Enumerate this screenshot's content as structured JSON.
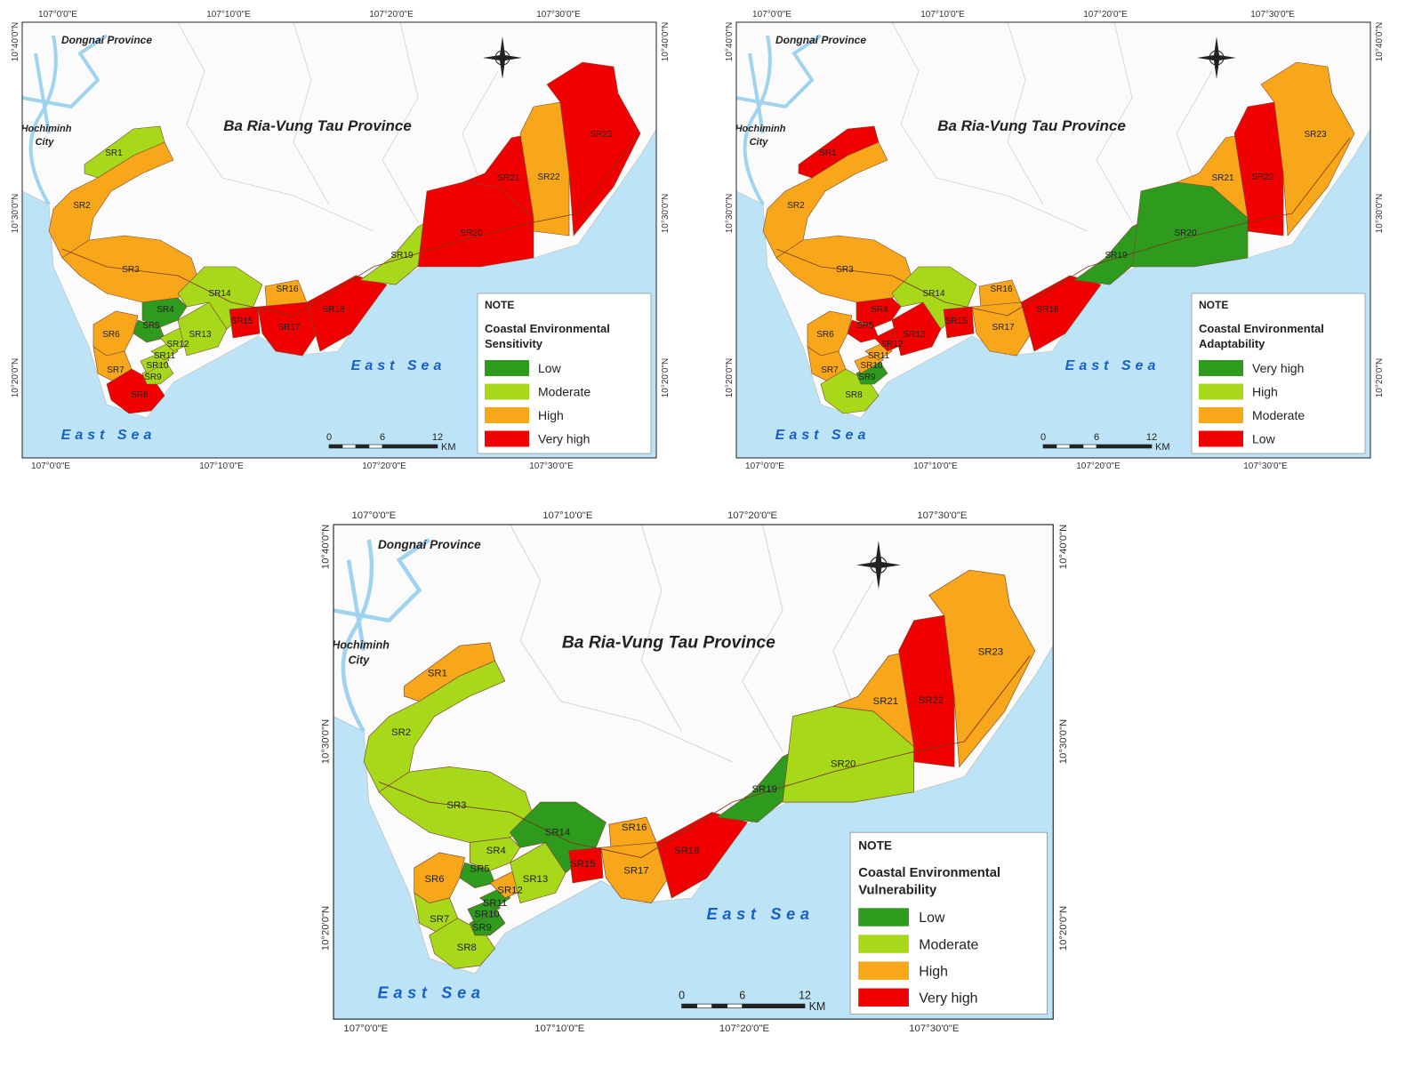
{
  "maps": [
    {
      "coordinates": {
        "top": [
          "107°0'0\"E",
          "107°10'0\"E",
          "107°20'0\"E",
          "107°30'0\"E"
        ],
        "bottom": [
          "107°0'0\"E",
          "107°10'0\"E",
          "107°20'0\"E",
          "107°30'0\"E"
        ],
        "left": [
          "10°40'0\"N",
          "10°30'0\"N",
          "10°20'0\"N"
        ],
        "right": [
          "10°40'0\"N",
          "10°30'0\"N",
          "10°20'0\"N"
        ]
      },
      "places": {
        "neighbor": "Dongnai Province",
        "city": [
          "Hochiminh",
          "City"
        ],
        "province": "Ba Ria-Vung Tau Province",
        "sea": [
          "East Sea",
          "East Sea"
        ]
      },
      "regions": [
        {
          "label": "SR1",
          "color": "#a8d81a"
        },
        {
          "label": "SR2",
          "color": "#f8a61a"
        },
        {
          "label": "SR3",
          "color": "#f8a61a"
        },
        {
          "label": "SR4",
          "color": "#2e9a1e"
        },
        {
          "label": "SR5",
          "color": "#2e9a1e"
        },
        {
          "label": "SR6",
          "color": "#f8a61a"
        },
        {
          "label": "SR7",
          "color": "#f8a61a"
        },
        {
          "label": "SR8",
          "color": "#f00000"
        },
        {
          "label": "SR9",
          "color": "#a8d81a"
        },
        {
          "label": "SR10",
          "color": "#a8d81a"
        },
        {
          "label": "SR11",
          "color": "#a8d81a"
        },
        {
          "label": "SR12",
          "color": "#a8d81a"
        },
        {
          "label": "SR13",
          "color": "#a8d81a"
        },
        {
          "label": "SR14",
          "color": "#a8d81a"
        },
        {
          "label": "SR15",
          "color": "#f00000"
        },
        {
          "label": "SR16",
          "color": "#f8a61a"
        },
        {
          "label": "SR17",
          "color": "#f00000"
        },
        {
          "label": "SR18",
          "color": "#f00000"
        },
        {
          "label": "SR19",
          "color": "#a8d81a"
        },
        {
          "label": "SR20",
          "color": "#f00000"
        },
        {
          "label": "SR21",
          "color": "#f00000"
        },
        {
          "label": "SR22",
          "color": "#f8a61a"
        },
        {
          "label": "SR23",
          "color": "#f00000"
        }
      ],
      "legend": {
        "note": "NOTE",
        "title": [
          "Coastal Environmental",
          "Sensitivity"
        ],
        "items": [
          {
            "label": "Low",
            "color": "#2e9a1e"
          },
          {
            "label": "Moderate",
            "color": "#a8d81a"
          },
          {
            "label": "High",
            "color": "#f8a61a"
          },
          {
            "label": "Very high",
            "color": "#f00000"
          }
        ]
      },
      "scale": {
        "values": [
          0,
          6,
          12
        ],
        "unit": "KM"
      }
    },
    {
      "coordinates": {
        "top": [
          "107°0'0\"E",
          "107°10'0\"E",
          "107°20'0\"E",
          "107°30'0\"E"
        ],
        "bottom": [
          "107°0'0\"E",
          "107°10'0\"E",
          "107°20'0\"E",
          "107°30'0\"E"
        ],
        "left": [
          "10°40'0\"N",
          "10°30'0\"N",
          "10°20'0\"N"
        ],
        "right": [
          "10°40'0\"N",
          "10°30'0\"N",
          "10°20'0\"N"
        ]
      },
      "places": {
        "neighbor": "Dongnai Province",
        "city": [
          "Hochiminh",
          "City"
        ],
        "province": "Ba Ria-Vung Tau Province",
        "sea": [
          "East Sea",
          "East Sea"
        ]
      },
      "regions": [
        {
          "label": "SR1",
          "color": "#f00000"
        },
        {
          "label": "SR2",
          "color": "#f8a61a"
        },
        {
          "label": "SR3",
          "color": "#f8a61a"
        },
        {
          "label": "SR4",
          "color": "#f00000"
        },
        {
          "label": "SR5",
          "color": "#f00000"
        },
        {
          "label": "SR6",
          "color": "#f8a61a"
        },
        {
          "label": "SR7",
          "color": "#f8a61a"
        },
        {
          "label": "SR8",
          "color": "#a8d81a"
        },
        {
          "label": "SR9",
          "color": "#2e9a1e"
        },
        {
          "label": "SR10",
          "color": "#f8a61a"
        },
        {
          "label": "SR11",
          "color": "#f8a61a"
        },
        {
          "label": "SR12",
          "color": "#f00000"
        },
        {
          "label": "SR13",
          "color": "#f00000"
        },
        {
          "label": "SR14",
          "color": "#a8d81a"
        },
        {
          "label": "SR15",
          "color": "#f00000"
        },
        {
          "label": "SR16",
          "color": "#f8a61a"
        },
        {
          "label": "SR17",
          "color": "#f8a61a"
        },
        {
          "label": "SR18",
          "color": "#f00000"
        },
        {
          "label": "SR19",
          "color": "#2e9a1e"
        },
        {
          "label": "SR20",
          "color": "#2e9a1e"
        },
        {
          "label": "SR21",
          "color": "#f8a61a"
        },
        {
          "label": "SR22",
          "color": "#f00000"
        },
        {
          "label": "SR23",
          "color": "#f8a61a"
        }
      ],
      "legend": {
        "note": "NOTE",
        "title": [
          "Coastal Environmental",
          "Adaptability"
        ],
        "items": [
          {
            "label": "Very high",
            "color": "#2e9a1e"
          },
          {
            "label": "High",
            "color": "#a8d81a"
          },
          {
            "label": "Moderate",
            "color": "#f8a61a"
          },
          {
            "label": "Low",
            "color": "#f00000"
          }
        ]
      },
      "scale": {
        "values": [
          0,
          6,
          12
        ],
        "unit": "KM"
      }
    },
    {
      "coordinates": {
        "top": [
          "107°0'0\"E",
          "107°10'0\"E",
          "107°20'0\"E",
          "107°30'0\"E"
        ],
        "bottom": [
          "107°0'0\"E",
          "107°10'0\"E",
          "107°20'0\"E",
          "107°30'0\"E"
        ],
        "left": [
          "10°40'0\"N",
          "10°30'0\"N",
          "10°20'0\"N"
        ],
        "right": [
          "10°40'0\"N",
          "10°30'0\"N",
          "10°20'0\"N"
        ]
      },
      "places": {
        "neighbor": "Dongnai Province",
        "city": [
          "Hochiminh",
          "City"
        ],
        "province": "Ba Ria-Vung Tau Province",
        "sea": [
          "East Sea",
          "East Sea"
        ]
      },
      "regions": [
        {
          "label": "SR1",
          "color": "#f8a61a"
        },
        {
          "label": "SR2",
          "color": "#a8d81a"
        },
        {
          "label": "SR3",
          "color": "#a8d81a"
        },
        {
          "label": "SR4",
          "color": "#a8d81a"
        },
        {
          "label": "SR5",
          "color": "#2e9a1e"
        },
        {
          "label": "SR6",
          "color": "#f8a61a"
        },
        {
          "label": "SR7",
          "color": "#a8d81a"
        },
        {
          "label": "SR8",
          "color": "#a8d81a"
        },
        {
          "label": "SR9",
          "color": "#2e9a1e"
        },
        {
          "label": "SR10",
          "color": "#2e9a1e"
        },
        {
          "label": "SR11",
          "color": "#2e9a1e"
        },
        {
          "label": "SR12",
          "color": "#f8a61a"
        },
        {
          "label": "SR13",
          "color": "#a8d81a"
        },
        {
          "label": "SR14",
          "color": "#2e9a1e"
        },
        {
          "label": "SR15",
          "color": "#f00000"
        },
        {
          "label": "SR16",
          "color": "#f8a61a"
        },
        {
          "label": "SR17",
          "color": "#f8a61a"
        },
        {
          "label": "SR18",
          "color": "#f00000"
        },
        {
          "label": "SR19",
          "color": "#2e9a1e"
        },
        {
          "label": "SR20",
          "color": "#a8d81a"
        },
        {
          "label": "SR21",
          "color": "#f8a61a"
        },
        {
          "label": "SR22",
          "color": "#f00000"
        },
        {
          "label": "SR23",
          "color": "#f8a61a"
        }
      ],
      "legend": {
        "note": "NOTE",
        "title": [
          "Coastal Environmental",
          "Vulnerability"
        ],
        "items": [
          {
            "label": "Low",
            "color": "#2e9a1e"
          },
          {
            "label": "Moderate",
            "color": "#a8d81a"
          },
          {
            "label": "High",
            "color": "#f8a61a"
          },
          {
            "label": "Very high",
            "color": "#f00000"
          }
        ]
      },
      "scale": {
        "values": [
          0,
          6,
          12
        ],
        "unit": "KM"
      }
    }
  ]
}
